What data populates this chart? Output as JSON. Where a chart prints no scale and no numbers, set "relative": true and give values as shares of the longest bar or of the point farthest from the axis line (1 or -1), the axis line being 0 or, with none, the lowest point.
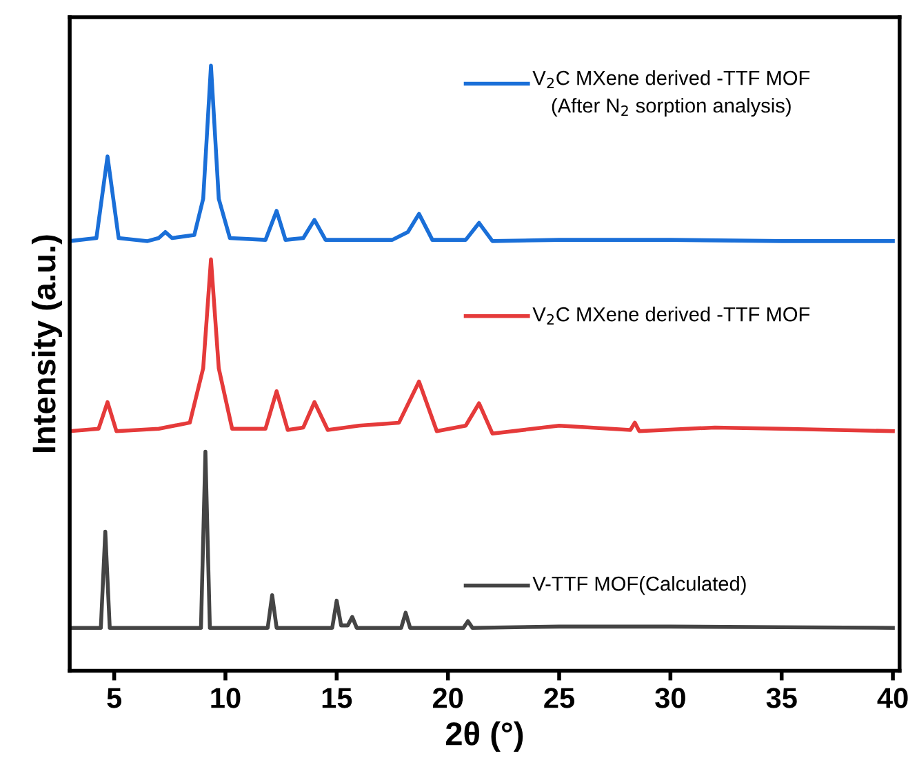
{
  "chart_data": {
    "type": "line",
    "relative": true,
    "xlabel": "2θ (°)",
    "ylabel": "Intensity (a.u.)",
    "xlim": [
      3,
      40.3
    ],
    "xticks": [
      5,
      10,
      15,
      20,
      25,
      30,
      35,
      40
    ],
    "grid": false,
    "legend": "right",
    "tick_labels": "x",
    "series": [
      {
        "name": "V$_{2}$C MXene derived -TTF MOF\n(After N$_{2}$ sorption analysis)",
        "color": "#1a6fd8",
        "x": [
          3,
          4.2,
          4.7,
          5.2,
          6.5,
          7.0,
          7.3,
          7.6,
          8.6,
          9.0,
          9.35,
          9.7,
          10.2,
          11.8,
          12.3,
          12.7,
          13.5,
          14.0,
          14.5,
          17.5,
          18.2,
          18.7,
          19.3,
          20.8,
          21.4,
          22.0,
          25,
          30,
          35,
          40
        ],
        "values": [
          0.71,
          0.715,
          0.85,
          0.715,
          0.71,
          0.715,
          0.725,
          0.715,
          0.72,
          0.78,
          1.0,
          0.78,
          0.715,
          0.712,
          0.76,
          0.712,
          0.715,
          0.745,
          0.712,
          0.712,
          0.725,
          0.755,
          0.712,
          0.712,
          0.74,
          0.71,
          0.712,
          0.712,
          0.71,
          0.71
        ]
      },
      {
        "name": "V$_{2}$C MXene derived -TTF MOF",
        "color": "#e53a3a",
        "x": [
          3,
          4.3,
          4.7,
          5.1,
          7.0,
          8.4,
          9.0,
          9.35,
          9.7,
          10.3,
          11.8,
          12.3,
          12.8,
          13.5,
          14.0,
          14.6,
          16,
          17.8,
          18.7,
          19.5,
          20.8,
          21.4,
          22.0,
          25,
          28.2,
          28.4,
          28.6,
          32,
          35,
          40
        ],
        "values": [
          0.396,
          0.4,
          0.444,
          0.396,
          0.4,
          0.41,
          0.5,
          0.68,
          0.5,
          0.4,
          0.4,
          0.462,
          0.398,
          0.402,
          0.444,
          0.398,
          0.405,
          0.41,
          0.478,
          0.396,
          0.405,
          0.442,
          0.392,
          0.405,
          0.398,
          0.41,
          0.396,
          0.402,
          0.4,
          0.396
        ]
      },
      {
        "name": "V-TTF MOF(Calculated)",
        "color": "#444444",
        "x": [
          3,
          4.4,
          4.6,
          4.8,
          8.9,
          9.1,
          9.3,
          11.9,
          12.1,
          12.3,
          14.8,
          15.0,
          15.2,
          15.5,
          15.7,
          15.9,
          17.9,
          18.1,
          18.3,
          20.7,
          20.9,
          21.1,
          25,
          30,
          35,
          40
        ],
        "values": [
          0.071,
          0.071,
          0.23,
          0.071,
          0.071,
          0.362,
          0.071,
          0.071,
          0.125,
          0.071,
          0.071,
          0.116,
          0.075,
          0.075,
          0.089,
          0.071,
          0.071,
          0.096,
          0.071,
          0.071,
          0.082,
          0.071,
          0.073,
          0.073,
          0.072,
          0.071
        ]
      }
    ]
  }
}
